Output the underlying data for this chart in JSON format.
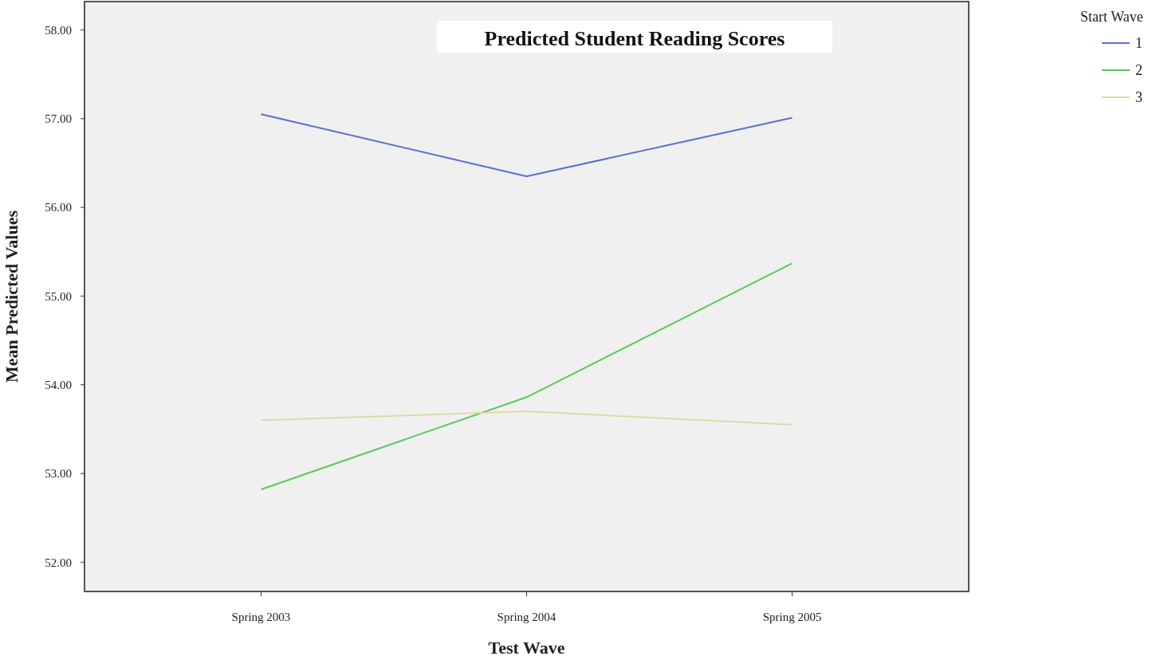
{
  "chart_data": {
    "type": "line",
    "title": "Predicted Student Reading Scores",
    "xlabel": "Test Wave",
    "ylabel": "Mean Predicted Values",
    "legend_title": "Start Wave",
    "categories": [
      "Spring 2003",
      "Spring 2004",
      "Spring 2005"
    ],
    "series": [
      {
        "name": "1",
        "color": "#5b6fd6",
        "values": [
          57.05,
          56.35,
          57.01
        ]
      },
      {
        "name": "2",
        "color": "#5cc85c",
        "values": [
          52.82,
          53.86,
          55.37
        ]
      },
      {
        "name": "3",
        "color": "#e0d8a8",
        "values": [
          53.6,
          53.7,
          53.55
        ]
      }
    ],
    "ylim": [
      51.67,
      58.32
    ],
    "yticks": [
      {
        "value": 52,
        "label": "52.00"
      },
      {
        "value": 53,
        "label": "53.00"
      },
      {
        "value": 54,
        "label": "54.00"
      },
      {
        "value": 55,
        "label": "55.00"
      },
      {
        "value": 56,
        "label": "56.00"
      },
      {
        "value": 57,
        "label": "57.00"
      },
      {
        "value": 58,
        "label": "58.00"
      }
    ],
    "grid": false,
    "legend": "top right",
    "marker": "none",
    "line_style": "solid"
  }
}
